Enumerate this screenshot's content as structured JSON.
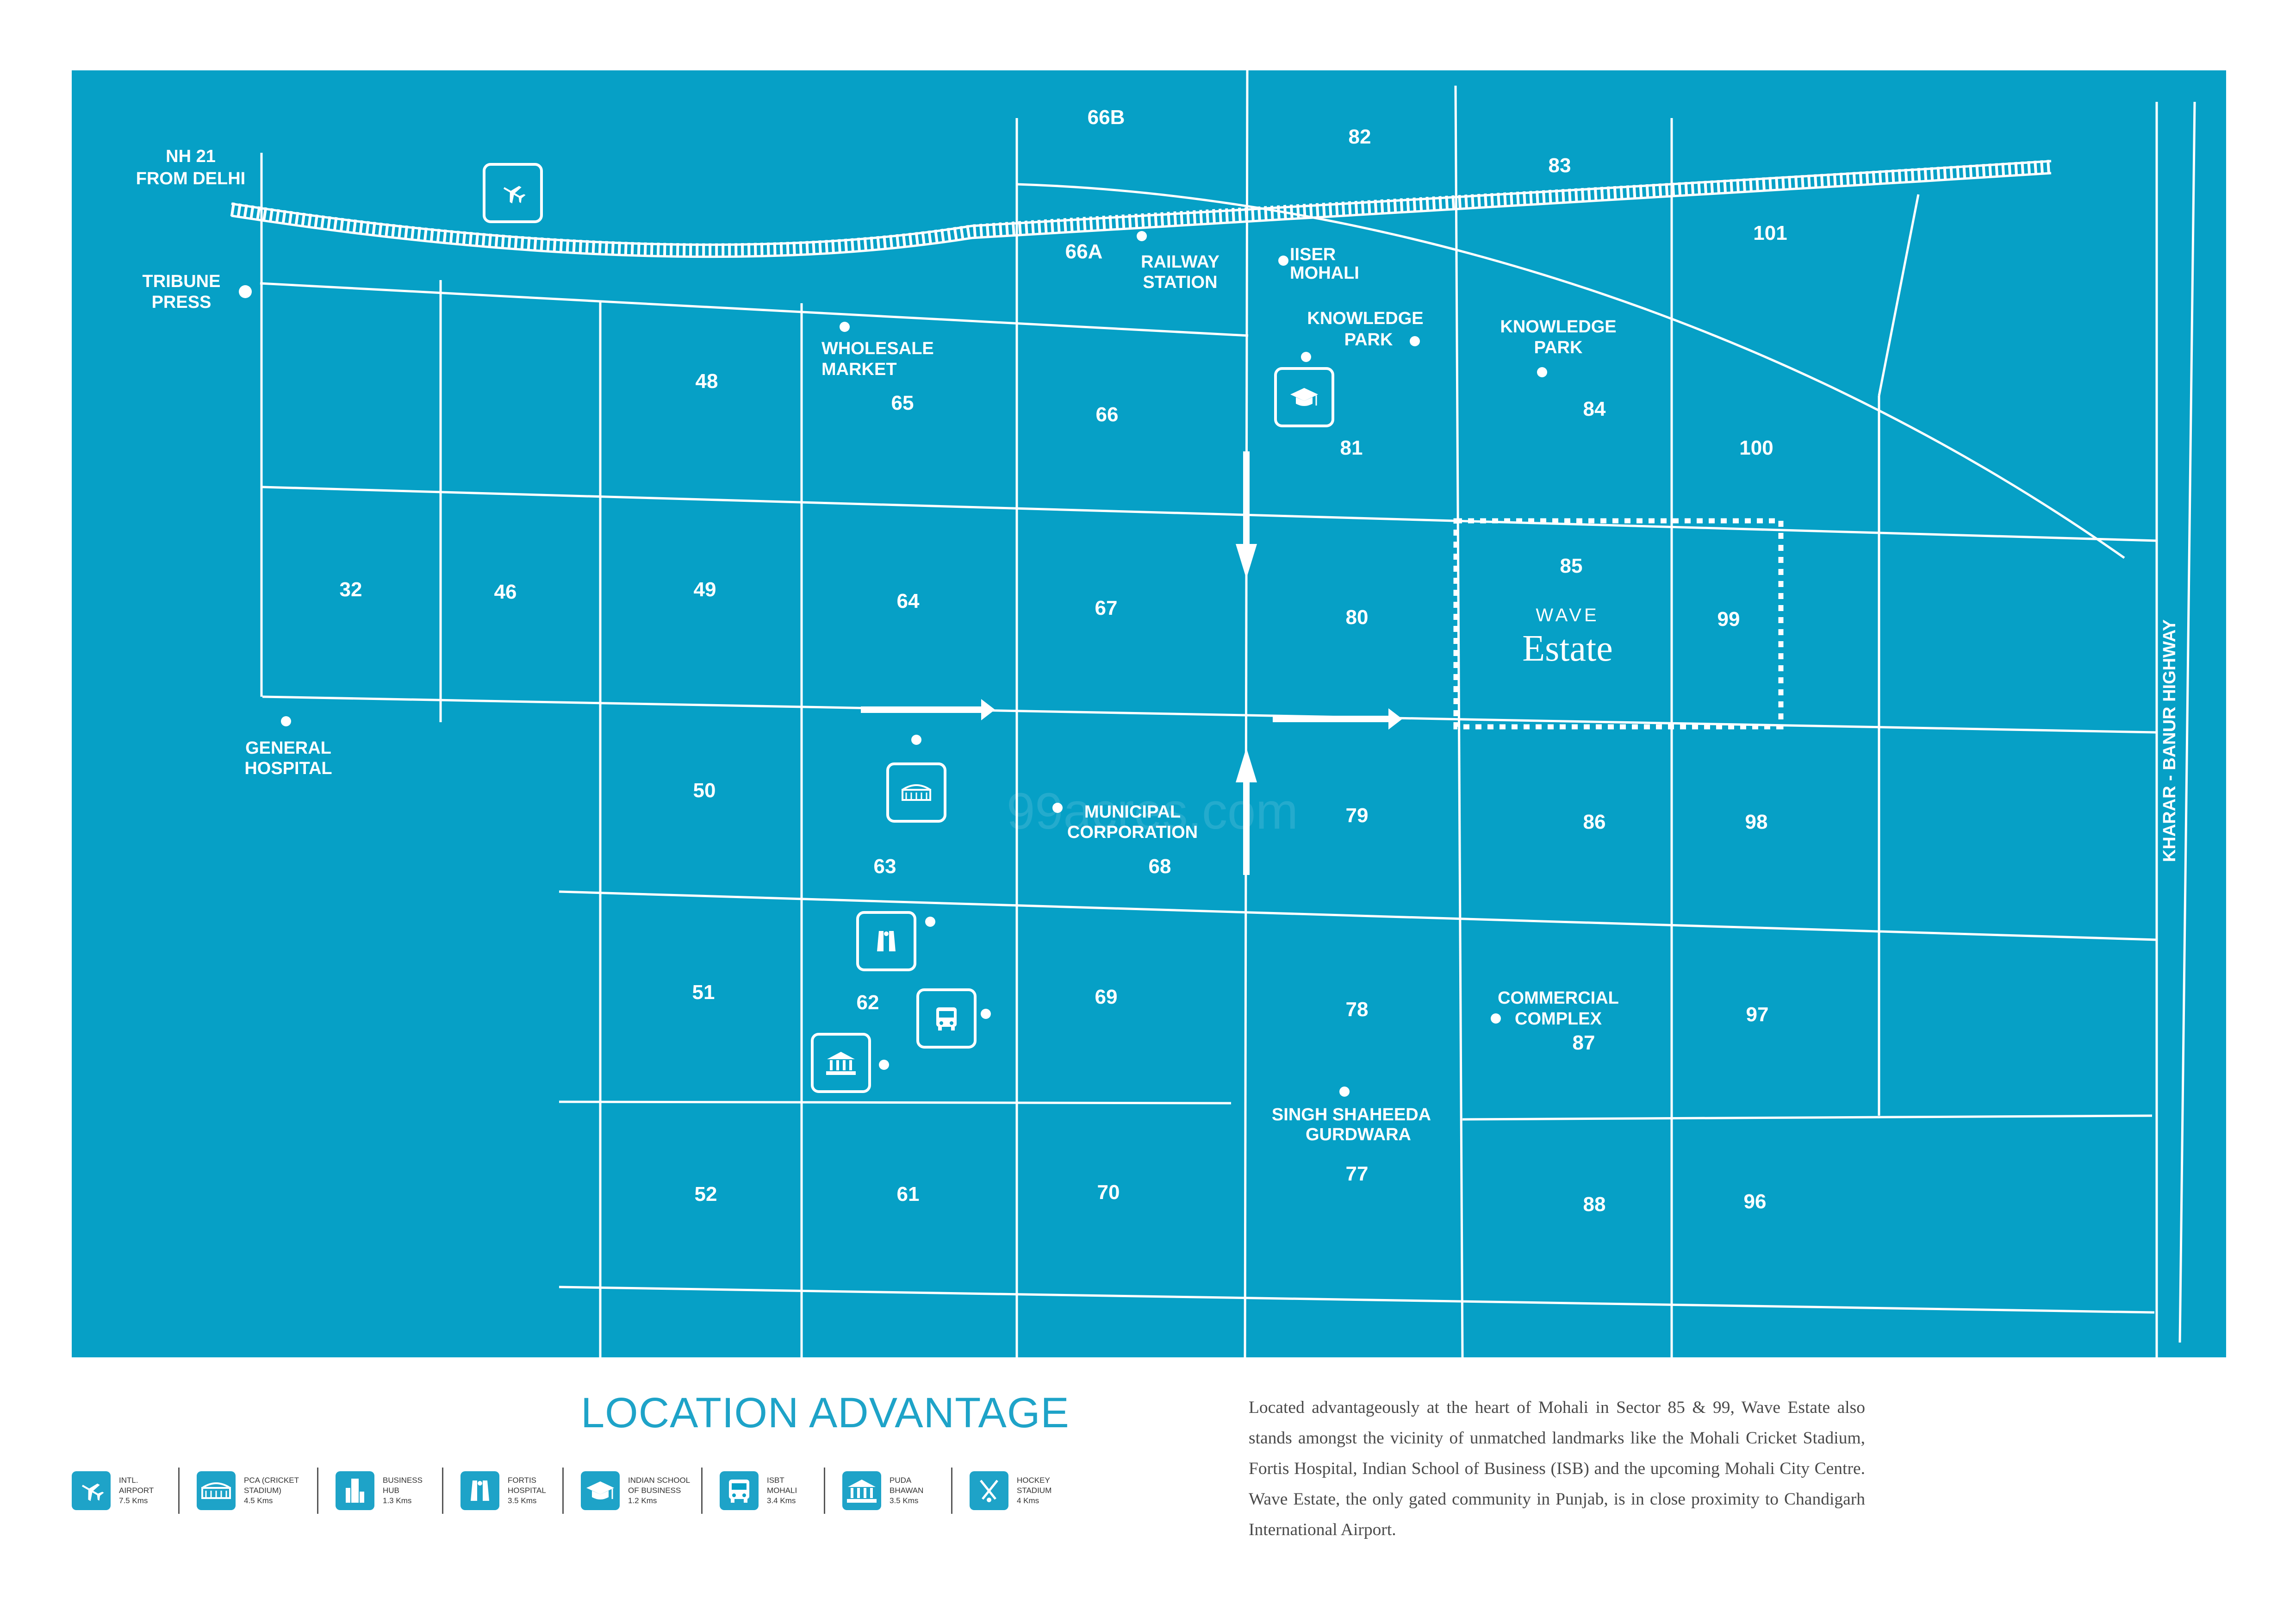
{
  "map": {
    "background_color": "#06a0c6",
    "road_color": "#ffffff",
    "sectors": [
      "66B",
      "82",
      "83",
      "101",
      "66A",
      "48",
      "65",
      "66",
      "81",
      "84",
      "100",
      "32",
      "46",
      "49",
      "64",
      "67",
      "80",
      "85",
      "99",
      "50",
      "63",
      "68",
      "79",
      "86",
      "98",
      "51",
      "62",
      "69",
      "78",
      "87",
      "97",
      "52",
      "61",
      "70",
      "77",
      "88",
      "96"
    ],
    "landmarks": {
      "nh21": [
        "NH 21",
        "FROM DELHI"
      ],
      "tribune": [
        "TRIBUNE",
        "PRESS"
      ],
      "railway": [
        "RAILWAY",
        "STATION"
      ],
      "iiser": [
        "IISER",
        "MOHALI"
      ],
      "kp1": [
        "KNOWLEDGE",
        "PARK"
      ],
      "kp2": [
        "KNOWLEDGE",
        "PARK"
      ],
      "wholesale": [
        "WHOLESALE",
        "MARKET"
      ],
      "general": [
        "GENERAL",
        "HOSPITAL"
      ],
      "municipal": [
        "MUNICIPAL",
        "CORPORATION"
      ],
      "commercial": [
        "COMMERCIAL",
        "COMPLEX"
      ],
      "gurdwara": [
        "SINGH SHAHEEDA",
        "GURDWARA"
      ],
      "highway": "KHARAR - BANUR HIGHWAY"
    },
    "project": {
      "brand": "WAVE",
      "name": "Estate"
    },
    "watermark": "99acres.com",
    "icons": [
      "airplane-icon",
      "education-icon",
      "stadium-icon",
      "hospital-icon",
      "bus-icon",
      "government-building-icon"
    ]
  },
  "section_title": "LOCATION ADVANTAGE",
  "description": "Located advantageously at the heart of Mohali in Sector 85 & 99, Wave Estate also stands amongst the vicinity of unmatched landmarks like the Mohali Cricket Stadium, Fortis Hospital, Indian School of Business (ISB) and the upcoming Mohali City Centre. Wave Estate, the only gated community in Punjab, is in close proximity to Chandigarh International Airport.",
  "legend": [
    {
      "icon": "airplane-icon",
      "lines": [
        "INTL.",
        "AIRPORT",
        "7.5 Kms"
      ]
    },
    {
      "icon": "stadium-icon",
      "lines": [
        "PCA (CRICKET",
        "STADIUM)",
        "4.5 Kms"
      ]
    },
    {
      "icon": "business-hub-icon",
      "lines": [
        "BUSINESS",
        "HUB",
        "1.3 Kms"
      ]
    },
    {
      "icon": "hospital-icon",
      "lines": [
        "FORTIS",
        "HOSPITAL",
        "3.5 Kms"
      ]
    },
    {
      "icon": "education-icon",
      "lines": [
        "INDIAN SCHOOL",
        "OF BUSINESS",
        "1.2 Kms"
      ]
    },
    {
      "icon": "bus-icon",
      "lines": [
        "ISBT",
        "MOHALI",
        "3.4 Kms"
      ]
    },
    {
      "icon": "government-building-icon",
      "lines": [
        "PUDA",
        "BHAWAN",
        "3.5 Kms"
      ]
    },
    {
      "icon": "hockey-icon",
      "lines": [
        "HOCKEY",
        "STADIUM",
        "4 Kms"
      ]
    }
  ]
}
